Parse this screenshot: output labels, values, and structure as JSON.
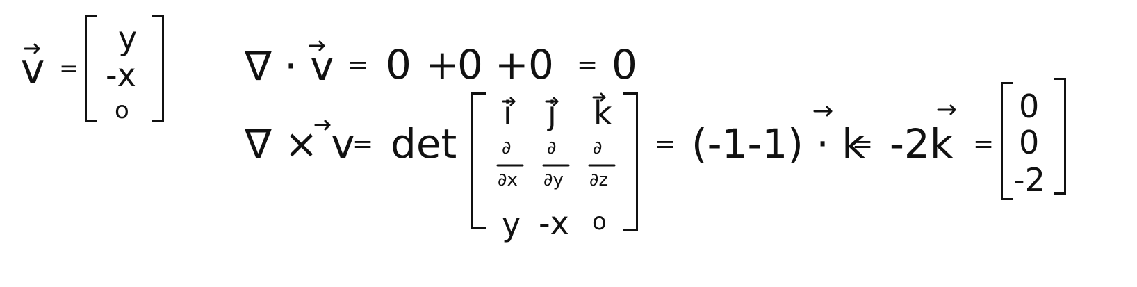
{
  "vector_def": {
    "lhs": "v",
    "eq": "=",
    "entries": [
      "y",
      "-x",
      "o"
    ]
  },
  "divergence": {
    "lhs": "∇ · v",
    "eq1": "=",
    "terms": [
      "0",
      "+",
      "0",
      "+",
      "0"
    ],
    "eq2": "=",
    "result": "0"
  },
  "curl": {
    "lhs": "∇ × v",
    "eq1": "=",
    "det_label": "det",
    "matrix": {
      "row1": [
        "i",
        "j",
        "k"
      ],
      "row2_num": [
        "∂",
        "∂",
        "∂"
      ],
      "row2_den": [
        "∂x",
        "∂y",
        "∂z"
      ],
      "row3": [
        "y",
        "-x",
        "o"
      ]
    },
    "eq2": "=",
    "expr": "(-1-1) · k",
    "eq3": "=",
    "simplified": "-2k",
    "eq4": "=",
    "result_vector": [
      "0",
      "0",
      "-2"
    ]
  },
  "colors": {
    "ink": "#111111",
    "background": "#ffffff"
  }
}
